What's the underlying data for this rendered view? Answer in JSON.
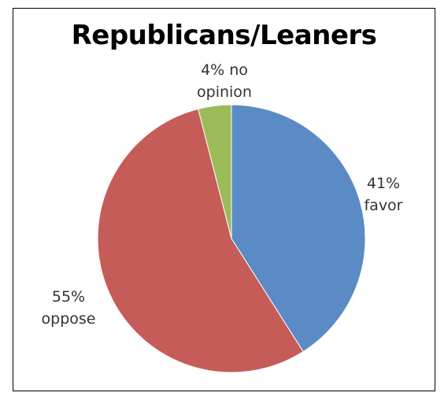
{
  "chart_data": {
    "type": "pie",
    "title": "Republicans/Leaners",
    "slices": [
      {
        "label_value": "41%",
        "label_text": "favor",
        "value": 41,
        "color": "#5B8BC5"
      },
      {
        "label_value": "55%",
        "label_text": "oppose",
        "value": 55,
        "color": "#C65C58"
      },
      {
        "label_value": "4% no",
        "label_text": "opinion",
        "value": 4,
        "color": "#9BBB59"
      }
    ],
    "start": "top",
    "direction": "clockwise",
    "legend": "none"
  }
}
